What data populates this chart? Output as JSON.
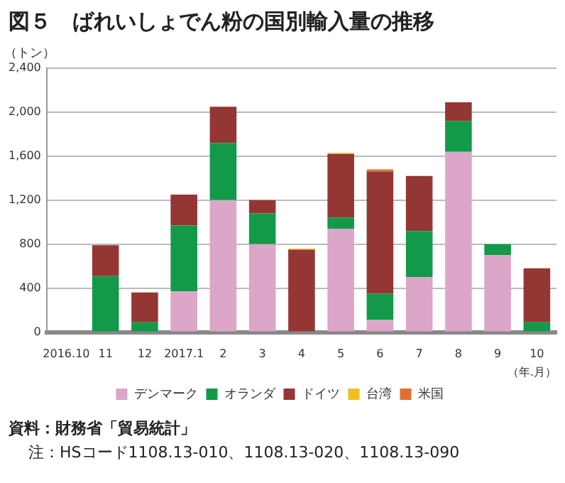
{
  "chart_data": {
    "type": "bar",
    "title": "図５　ばれいしょでん粉の国別輸入量の推移",
    "ylabel": "（トン）",
    "xlabel": "（年.月）",
    "categories": [
      "2016.10",
      "11",
      "12",
      "2017.1",
      "2",
      "3",
      "4",
      "5",
      "6",
      "7",
      "8",
      "9",
      "10"
    ],
    "stacked": true,
    "series": [
      {
        "name": "デンマーク",
        "color": "#dba6c8",
        "values": [
          0,
          null,
          0,
          370,
          1200,
          800,
          0,
          940,
          110,
          500,
          1640,
          700,
          0
        ]
      },
      {
        "name": "オランダ",
        "color": "#12994a",
        "values": [
          0,
          510,
          90,
          600,
          520,
          280,
          0,
          100,
          240,
          420,
          280,
          100,
          90
        ]
      },
      {
        "name": "ドイツ",
        "color": "#943634",
        "values": [
          0,
          280,
          270,
          280,
          330,
          120,
          750,
          580,
          1110,
          500,
          170,
          0,
          490
        ]
      },
      {
        "name": "台湾",
        "color": "#f0c020",
        "values": [
          0,
          0,
          0,
          0,
          0,
          0,
          10,
          10,
          0,
          0,
          0,
          0,
          0
        ]
      },
      {
        "name": "米国",
        "color": "#e07030",
        "values": [
          0,
          0,
          0,
          0,
          0,
          0,
          0,
          0,
          20,
          0,
          0,
          0,
          0
        ]
      }
    ],
    "ylim": [
      0,
      2400
    ],
    "yticks": [
      0,
      400,
      800,
      {
        "value": 1200,
        "label": "1,200"
      },
      {
        "value": 1600,
        "label": "1,600"
      },
      {
        "value": 2000,
        "label": "2,000"
      },
      {
        "value": 2400,
        "label": "2,400"
      }
    ],
    "grid": "y",
    "legend": "bottom",
    "annotations": [
      "資料：財務省「貿易統計」",
      "注：HSコード1108.13-010、1108.13-020、1108.13-090"
    ]
  }
}
